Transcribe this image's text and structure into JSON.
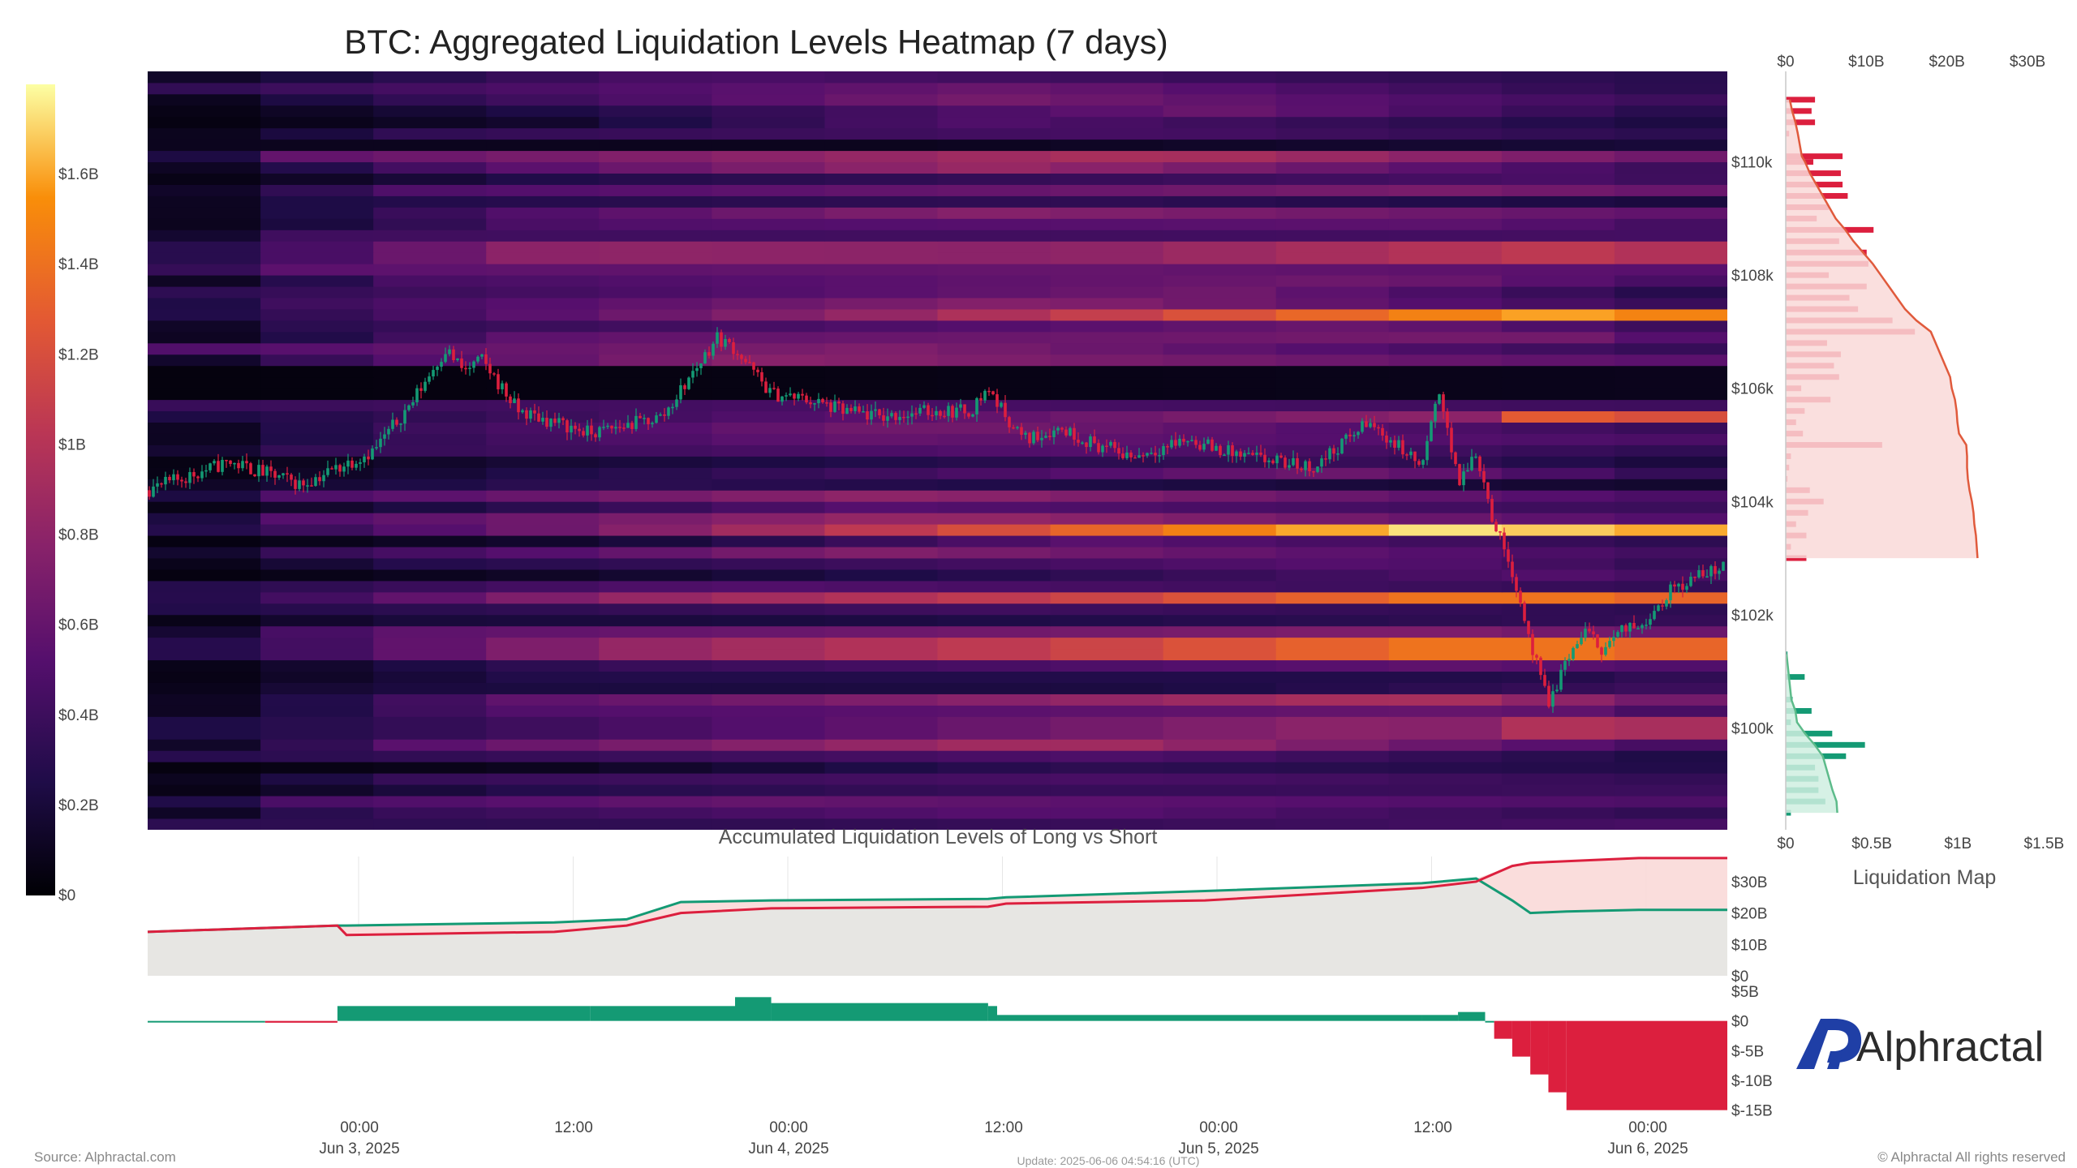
{
  "title": "BTC: Aggregated Liquidation Levels Heatmap (7 days)",
  "colors": {
    "long": "#149a74",
    "short": "#dc1f3e",
    "short_fill": "#f9d9d8",
    "neutral_fill": "#e7e6e3",
    "brand": "#1f3fa6"
  },
  "chart_data": [
    {
      "type": "heatmap",
      "title": "BTC: Aggregated Liquidation Levels Heatmap (7 days)",
      "colorscale": "inferno",
      "colorbar": {
        "ticks": [
          "$0",
          "$0.2B",
          "$0.4B",
          "$0.6B",
          "$0.8B",
          "$1B",
          "$1.2B",
          "$1.4B",
          "$1.6B"
        ],
        "range": [
          0,
          1.8
        ]
      },
      "x_ticks": [
        {
          "time": "00:00",
          "date": "Jun 3, 2025"
        },
        {
          "time": "12:00",
          "date": ""
        },
        {
          "time": "00:00",
          "date": "Jun 4, 2025"
        },
        {
          "time": "12:00",
          "date": ""
        },
        {
          "time": "00:00",
          "date": "Jun 5, 2025"
        },
        {
          "time": "12:00",
          "date": ""
        },
        {
          "time": "00:00",
          "date": "Jun 6, 2025"
        }
      ],
      "x_range": [
        "2025-06-02 13:30",
        "2025-06-06 04:54"
      ],
      "y_ticks": [
        "$100k",
        "$102k",
        "$104k",
        "$106k",
        "$108k",
        "$110k"
      ],
      "y_range": [
        98200,
        111600
      ],
      "hot_levels": [
        {
          "price": 107300,
          "start": "2025-06-04 05:00",
          "peak": "2025-06-05 19:00",
          "value_b": 1.6
        },
        {
          "price": 103450,
          "start": "2025-06-03 20:00",
          "peak": "2025-06-05 14:00",
          "value_b": 1.75
        },
        {
          "price": 102250,
          "start": "2025-06-03 15:00",
          "peak": "2025-06-05 16:00",
          "value_b": 1.45
        },
        {
          "price": 101400,
          "start": "2025-06-03 15:00",
          "peak": "2025-06-05 16:00",
          "value_b": 1.45
        },
        {
          "price": 105450,
          "start": "2025-06-05 16:00",
          "peak": "2025-06-05 18:00",
          "value_b": 1.3
        },
        {
          "price": 100000,
          "start": "2025-06-05 10:00",
          "peak": "2025-06-05 20:00",
          "value_b": 1.0
        },
        {
          "price": 108400,
          "start": "2025-06-03 12:00",
          "peak": "2025-06-05 20:00",
          "value_b": 1.05
        }
      ],
      "price_series": {
        "name": "BTC price",
        "x": [
          "2025-06-02 13:30",
          "2025-06-02 18:00",
          "2025-06-02 22:00",
          "2025-06-03 02:00",
          "2025-06-03 04:00",
          "2025-06-03 06:00",
          "2025-06-03 07:00",
          "2025-06-03 08:00",
          "2025-06-03 10:00",
          "2025-06-03 14:00",
          "2025-06-03 18:00",
          "2025-06-03 21:00",
          "2025-06-03 22:00",
          "2025-06-04 00:00",
          "2025-06-04 02:00",
          "2025-06-04 04:00",
          "2025-06-04 06:00",
          "2025-06-04 09:00",
          "2025-06-04 11:00",
          "2025-06-04 12:00",
          "2025-06-04 13:00",
          "2025-06-04 14:00",
          "2025-06-04 16:00",
          "2025-06-04 18:00",
          "2025-06-04 20:00",
          "2025-06-04 23:00",
          "2025-06-05 02:00",
          "2025-06-05 06:00",
          "2025-06-05 09:00",
          "2025-06-05 11:00",
          "2025-06-05 12:00",
          "2025-06-05 13:00",
          "2025-06-05 14:00",
          "2025-06-05 15:00",
          "2025-06-05 16:00",
          "2025-06-05 17:00",
          "2025-06-05 18:00",
          "2025-06-05 19:00",
          "2025-06-05 20:00",
          "2025-06-05 21:00",
          "2025-06-05 22:00",
          "2025-06-05 23:00",
          "2025-06-06 00:00",
          "2025-06-06 02:00",
          "2025-06-06 04:54"
        ],
        "y": [
          104200,
          104700,
          104300,
          104900,
          105700,
          106700,
          106300,
          106500,
          105600,
          105200,
          105500,
          106900,
          106700,
          105900,
          105800,
          105600,
          105500,
          105600,
          105600,
          106000,
          105500,
          105100,
          105300,
          105000,
          104800,
          105100,
          104800,
          104600,
          105400,
          104900,
          104600,
          106000,
          104300,
          104900,
          103600,
          102800,
          101500,
          100400,
          101200,
          101700,
          101400,
          101700,
          101800,
          102500,
          102900
        ]
      },
      "legend": "none",
      "grid": false
    },
    {
      "type": "bar",
      "title": "Liquidation Map",
      "orientation": "horizontal",
      "top_axis_ticks": [
        "$0",
        "$10B",
        "$20B",
        "$30B"
      ],
      "bottom_axis_ticks": [
        "$0",
        "$0.5B",
        "$1B",
        "$1.5B"
      ],
      "bar_range_b": [
        0,
        1.55
      ],
      "series": [
        {
          "name": "Short",
          "prices": [
            111100,
            110900,
            110700,
            110500,
            110100,
            110000,
            109800,
            109600,
            109400,
            109200,
            109000,
            108800,
            108600,
            108400,
            108200,
            108000,
            107800,
            107600,
            107400,
            107200,
            107000,
            106800,
            106600,
            106400,
            106200,
            106000,
            105800,
            105600,
            105400,
            105200,
            105000,
            104800,
            104600,
            104400,
            104200,
            104000,
            103800,
            103600,
            103400,
            103200,
            103000
          ],
          "values_b": [
            0.17,
            0.15,
            0.17,
            0.02,
            0.33,
            0.16,
            0.32,
            0.33,
            0.36,
            0.25,
            0.18,
            0.51,
            0.31,
            0.47,
            0.48,
            0.25,
            0.47,
            0.37,
            0.42,
            0.62,
            0.75,
            0.24,
            0.32,
            0.28,
            0.31,
            0.09,
            0.26,
            0.11,
            0.06,
            0.1,
            0.56,
            0.03,
            0.02,
            0.01,
            0.14,
            0.22,
            0.13,
            0.06,
            0.12,
            0.03,
            0.12
          ],
          "accumulated_b": [
            0.5,
            0.8,
            1.2,
            1.5,
            2,
            2.4,
            3,
            3.8,
            4.6,
            5.4,
            6.2,
            7.4,
            8.4,
            9.6,
            10.8,
            11.8,
            12.8,
            13.8,
            14.8,
            16.2,
            18,
            18.6,
            19.2,
            19.8,
            20.4,
            20.6,
            21,
            21.2,
            21.3,
            21.5,
            22.4,
            22.5,
            22.5,
            22.6,
            22.8,
            23.1,
            23.3,
            23.4,
            23.6,
            23.7,
            23.8
          ]
        },
        {
          "name": "Long",
          "prices": [
            101300,
            100900,
            100500,
            100300,
            100100,
            99900,
            99700,
            99500,
            99300,
            99100,
            98900,
            98700,
            98500
          ],
          "values_b": [
            0.01,
            0.11,
            0.04,
            0.15,
            0.03,
            0.27,
            0.46,
            0.35,
            0.17,
            0.19,
            0.19,
            0.23,
            0.03
          ],
          "accumulated_b": [
            0.1,
            0.4,
            0.7,
            1.2,
            1.4,
            2.4,
            3.6,
            4.6,
            5,
            5.4,
            5.8,
            6.3,
            6.4
          ]
        }
      ]
    },
    {
      "type": "line",
      "title": "Accumulated Liquidation Levels of Long vs Short",
      "y_ticks": [
        "$0",
        "$10B",
        "$20B",
        "$30B"
      ],
      "ylim": [
        0,
        38
      ],
      "x": [
        "2025-06-02 13:30",
        "2025-06-03 00:00",
        "2025-06-03 00:30",
        "2025-06-03 12:00",
        "2025-06-03 16:00",
        "2025-06-03 19:00",
        "2025-06-04 00:00",
        "2025-06-04 12:00",
        "2025-06-04 13:00",
        "2025-06-05 00:00",
        "2025-06-05 12:00",
        "2025-06-05 15:00",
        "2025-06-05 17:00",
        "2025-06-05 18:00",
        "2025-06-05 20:00",
        "2025-06-06 00:00",
        "2025-06-06 04:54"
      ],
      "series": [
        {
          "name": "Long",
          "values": [
            14,
            16,
            16,
            17,
            18,
            23.5,
            24,
            24.5,
            25,
            27,
            29.5,
            31,
            24,
            20,
            20.5,
            21,
            21
          ]
        },
        {
          "name": "Short",
          "values": [
            14,
            16,
            13,
            14,
            16,
            20,
            21.5,
            22,
            23,
            24,
            28,
            30,
            35,
            36,
            36.5,
            37.5,
            37.5
          ]
        }
      ]
    },
    {
      "type": "area",
      "title": "",
      "y_ticks": [
        "$5B",
        "$0",
        "$-5B",
        "$-10B",
        "$-15B"
      ],
      "ylim": [
        -16,
        5
      ],
      "x": [
        "2025-06-02 13:30",
        "2025-06-02 20:00",
        "2025-06-03 00:00",
        "2025-06-03 14:00",
        "2025-06-03 22:00",
        "2025-06-04 00:00",
        "2025-06-04 12:00",
        "2025-06-04 12:30",
        "2025-06-05 12:00",
        "2025-06-05 14:00",
        "2025-06-05 15:30",
        "2025-06-05 16:00",
        "2025-06-05 17:00",
        "2025-06-05 18:00",
        "2025-06-05 19:00",
        "2025-06-05 20:00",
        "2025-06-06 04:54"
      ],
      "values": [
        0,
        -0.3,
        2.5,
        2.5,
        4,
        3,
        2.5,
        1,
        1,
        1.5,
        0,
        -3,
        -6,
        -9,
        -12,
        -15,
        -15
      ]
    }
  ],
  "bottom_x_axis": {
    "ticks": [
      {
        "time": "00:00",
        "date": "Jun 3, 2025"
      },
      {
        "time": "12:00",
        "date": ""
      },
      {
        "time": "00:00",
        "date": "Jun 4, 2025"
      },
      {
        "time": "12:00",
        "date": ""
      },
      {
        "time": "00:00",
        "date": "Jun 5, 2025"
      },
      {
        "time": "12:00",
        "date": ""
      },
      {
        "time": "00:00",
        "date": "Jun 6, 2025"
      }
    ]
  },
  "footer": {
    "source": "Source: Alphractal.com",
    "update": "Update: 2025-06-06 04:54:16 (UTC)",
    "rights": "© Alphractal All rights reserved"
  },
  "brand": {
    "name": "Alphractal"
  }
}
